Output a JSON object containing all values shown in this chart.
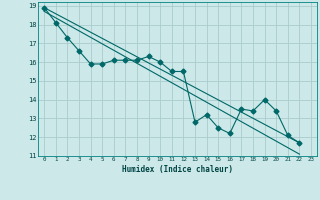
{
  "title": "",
  "xlabel": "Humidex (Indice chaleur)",
  "ylabel": "",
  "background_color": "#cce8e8",
  "grid_color": "#aacccc",
  "line_color": "#006868",
  "xlim": [
    -0.5,
    23.5
  ],
  "ylim": [
    11,
    19.2
  ],
  "xticks": [
    0,
    1,
    2,
    3,
    4,
    5,
    6,
    7,
    8,
    9,
    10,
    11,
    12,
    13,
    14,
    15,
    16,
    17,
    18,
    19,
    20,
    21,
    22,
    23
  ],
  "yticks": [
    11,
    12,
    13,
    14,
    15,
    16,
    17,
    18,
    19
  ],
  "series1_x": [
    0,
    1,
    2,
    3,
    4,
    5,
    6,
    7,
    8,
    9,
    10,
    11,
    12,
    13,
    14,
    15,
    16,
    17,
    18,
    19,
    20,
    21,
    22
  ],
  "series1_y": [
    18.9,
    18.1,
    17.3,
    16.6,
    15.9,
    15.9,
    16.1,
    16.1,
    16.1,
    16.3,
    16.0,
    15.5,
    15.5,
    12.8,
    13.2,
    12.5,
    12.2,
    13.5,
    13.4,
    14.0,
    13.4,
    12.1,
    11.7
  ],
  "series2_x": [
    0,
    22
  ],
  "series2_y": [
    18.9,
    11.7
  ],
  "series3_x": [
    0,
    22
  ],
  "series3_y": [
    18.7,
    11.1
  ],
  "marker": "D",
  "marker_size": 2.5,
  "line_width": 0.8
}
